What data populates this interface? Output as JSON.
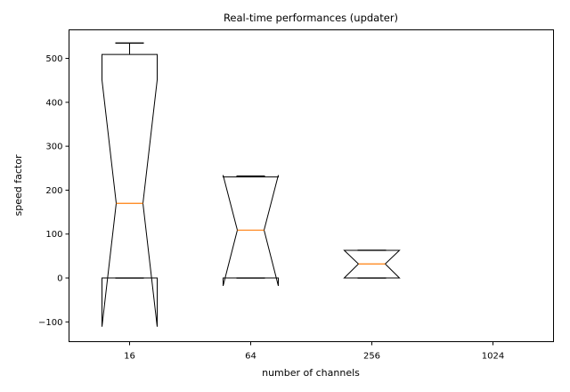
{
  "chart_data": {
    "type": "boxplot",
    "notched": true,
    "title": "Real-time performances (updater)",
    "xlabel": "number of channels",
    "ylabel": "speed factor",
    "categories": [
      "16",
      "64",
      "256",
      "1024"
    ],
    "ylim": [
      -145,
      565
    ],
    "yticks": [
      -100,
      0,
      100,
      200,
      300,
      400,
      500
    ],
    "yticklabels": [
      "−100",
      "0",
      "100",
      "200",
      "300",
      "400",
      "500"
    ],
    "grid": false,
    "boxes": [
      {
        "category": "16",
        "whislo": 0,
        "q1": 0,
        "med": 170,
        "q3": 509,
        "whishi": 535,
        "notch_lo": -111,
        "notch_hi": 451
      },
      {
        "category": "64",
        "whislo": 0,
        "q1": 0,
        "med": 109,
        "q3": 230,
        "whishi": 232,
        "notch_lo": -18,
        "notch_hi": 234
      },
      {
        "category": "256",
        "whislo": 0,
        "q1": 0,
        "med": 32,
        "q3": 63,
        "whishi": 63,
        "notch_lo": 0,
        "notch_hi": 63
      },
      {
        "category": "1024",
        "whislo": null,
        "q1": null,
        "med": null,
        "q3": null,
        "whishi": null,
        "notch_lo": null,
        "notch_hi": null
      }
    ],
    "colors": {
      "box": "#000000",
      "median": "#ff7f0e",
      "axes": "#000000",
      "background": "#ffffff"
    }
  }
}
